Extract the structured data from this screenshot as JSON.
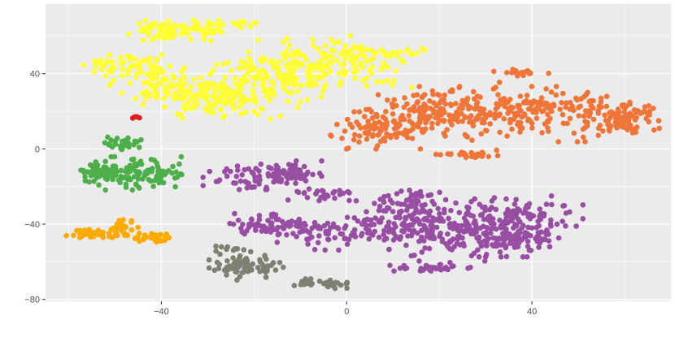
{
  "chart_data": {
    "type": "scatter",
    "title": "",
    "xlabel": "",
    "ylabel": "",
    "xlim": [
      -65,
      70
    ],
    "ylim": [
      -81,
      77
    ],
    "x_ticks": [
      -40,
      0,
      40
    ],
    "y_ticks": [
      -80,
      -40,
      0,
      40
    ],
    "x_tick_labels": [
      "−40",
      "0",
      "40"
    ],
    "y_tick_labels": [
      "−80",
      "−40",
      "0",
      "40"
    ],
    "grid": true,
    "legend": "none",
    "panel_background": "#ebebeb",
    "grid_color": "#ffffff",
    "clusters": [
      {
        "color": "#ffff33",
        "n": 650,
        "blobs": [
          {
            "cx": -35,
            "cy": 63,
            "sx": 5.5,
            "sy": 2.5,
            "w": 1.0
          },
          {
            "cx": -23,
            "cy": 67,
            "sx": 2.0,
            "sy": 1.0,
            "w": 0.1
          },
          {
            "cx": -48,
            "cy": 45,
            "sx": 4.0,
            "sy": 3.0,
            "w": 0.6
          },
          {
            "cx": -38,
            "cy": 33,
            "sx": 6.0,
            "sy": 5.0,
            "w": 1.1
          },
          {
            "cx": -26,
            "cy": 25,
            "sx": 7.0,
            "sy": 5.0,
            "w": 1.2
          },
          {
            "cx": -18,
            "cy": 38,
            "sx": 6.0,
            "sy": 6.0,
            "w": 1.2
          },
          {
            "cx": -8,
            "cy": 47,
            "sx": 6.0,
            "sy": 6.0,
            "w": 1.0
          },
          {
            "cx": 3,
            "cy": 45,
            "sx": 5.0,
            "sy": 7.0,
            "w": 1.0
          },
          {
            "cx": 10,
            "cy": 51,
            "sx": 4.0,
            "sy": 1.5,
            "w": 0.3
          }
        ]
      },
      {
        "color": "#e41a1c",
        "n": 4,
        "blobs": [
          {
            "cx": -45.5,
            "cy": 17,
            "sx": 0.4,
            "sy": 0.4,
            "w": 1.0
          }
        ]
      },
      {
        "color": "#ef7538",
        "n": 560,
        "blobs": [
          {
            "cx": 7,
            "cy": 11,
            "sx": 5.0,
            "sy": 5.0,
            "w": 1.0
          },
          {
            "cx": 17,
            "cy": 20,
            "sx": 6.0,
            "sy": 6.0,
            "w": 1.1
          },
          {
            "cx": 29,
            "cy": 20,
            "sx": 6.0,
            "sy": 7.0,
            "w": 1.3
          },
          {
            "cx": 41,
            "cy": 20,
            "sx": 5.0,
            "sy": 6.0,
            "w": 1.0
          },
          {
            "cx": 52,
            "cy": 17,
            "sx": 6.0,
            "sy": 6.0,
            "w": 1.1
          },
          {
            "cx": 61,
            "cy": 16,
            "sx": 3.0,
            "sy": 4.0,
            "w": 0.7
          },
          {
            "cx": 27,
            "cy": -3,
            "sx": 3.5,
            "sy": 1.2,
            "w": 0.3
          },
          {
            "cx": 37,
            "cy": 40,
            "sx": 3.0,
            "sy": 1.5,
            "w": 0.2
          }
        ]
      },
      {
        "color": "#4daf4a",
        "n": 190,
        "blobs": [
          {
            "cx": -53,
            "cy": -13,
            "sx": 2.5,
            "sy": 3.0,
            "w": 0.6
          },
          {
            "cx": -44,
            "cy": -13,
            "sx": 4.5,
            "sy": 4.0,
            "w": 1.0
          },
          {
            "cx": -48,
            "cy": 3,
            "sx": 2.5,
            "sy": 1.5,
            "w": 0.3
          }
        ]
      },
      {
        "color": "#ffaa00",
        "n": 110,
        "blobs": [
          {
            "cx": -55,
            "cy": -45,
            "sx": 2.5,
            "sy": 1.0,
            "w": 0.7
          },
          {
            "cx": -49,
            "cy": -43,
            "sx": 1.8,
            "sy": 2.5,
            "w": 0.7
          },
          {
            "cx": -41,
            "cy": -47,
            "sx": 2.0,
            "sy": 1.2,
            "w": 0.5
          }
        ]
      },
      {
        "color": "#984ea3",
        "n": 760,
        "blobs": [
          {
            "cx": -20,
            "cy": -15,
            "sx": 5.0,
            "sy": 3.5,
            "w": 0.8
          },
          {
            "cx": -12,
            "cy": -13,
            "sx": 3.0,
            "sy": 3.0,
            "w": 0.4
          },
          {
            "cx": -16,
            "cy": -41,
            "sx": 4.5,
            "sy": 3.0,
            "w": 0.7
          },
          {
            "cx": -4,
            "cy": -45,
            "sx": 5.0,
            "sy": 4.0,
            "w": 0.8
          },
          {
            "cx": -5,
            "cy": -24,
            "sx": 3.5,
            "sy": 2.0,
            "w": 0.3
          },
          {
            "cx": 9,
            "cy": -40,
            "sx": 5.0,
            "sy": 5.0,
            "w": 0.9
          },
          {
            "cx": 14,
            "cy": -27,
            "sx": 4.0,
            "sy": 3.0,
            "w": 0.4
          },
          {
            "cx": 20,
            "cy": -42,
            "sx": 5.0,
            "sy": 8.0,
            "w": 1.3
          },
          {
            "cx": 31,
            "cy": -42,
            "sx": 5.0,
            "sy": 7.0,
            "w": 1.2
          },
          {
            "cx": 40,
            "cy": -36,
            "sx": 5.0,
            "sy": 5.0,
            "w": 0.9
          },
          {
            "cx": 37,
            "cy": -48,
            "sx": 4.0,
            "sy": 3.0,
            "w": 0.5
          },
          {
            "cx": 18,
            "cy": -63,
            "sx": 4.0,
            "sy": 1.2,
            "w": 0.4
          }
        ]
      },
      {
        "color": "#7f7f72",
        "n": 120,
        "blobs": [
          {
            "cx": -24,
            "cy": -62,
            "sx": 3.0,
            "sy": 3.5,
            "w": 1.0
          },
          {
            "cx": -17,
            "cy": -63,
            "sx": 2.5,
            "sy": 2.0,
            "w": 0.4
          },
          {
            "cx": -25,
            "cy": -53,
            "sx": 1.5,
            "sy": 1.0,
            "w": 0.15
          },
          {
            "cx": -8,
            "cy": -71,
            "sx": 1.5,
            "sy": 1.0,
            "w": 0.25
          },
          {
            "cx": -2,
            "cy": -72,
            "sx": 2.0,
            "sy": 1.0,
            "w": 0.3
          }
        ]
      }
    ]
  }
}
